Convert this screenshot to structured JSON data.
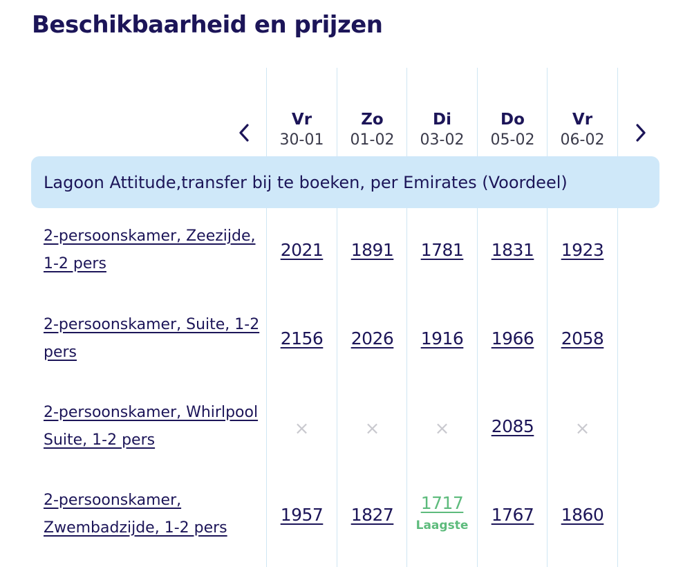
{
  "title": "Beschikbaarheid en prijzen",
  "nav": {
    "prev_icon": "chevron-left-icon",
    "next_icon": "chevron-right-icon"
  },
  "days": [
    {
      "day": "Vr",
      "date": "30-01"
    },
    {
      "day": "Zo",
      "date": "01-02"
    },
    {
      "day": "Di",
      "date": "03-02"
    },
    {
      "day": "Do",
      "date": "05-02"
    },
    {
      "day": "Vr",
      "date": "06-02"
    }
  ],
  "package": "Lagoon Attitude,transfer bij te boeken, per Emirates (Voordeel)",
  "unavailable_symbol": "×",
  "lowest_label": "Laagste",
  "rooms": [
    {
      "name": "2-persoonskamer, Zeezijde, 1-2 pers",
      "prices": [
        "2021",
        "1891",
        "1781",
        "1831",
        "1923"
      ]
    },
    {
      "name": "2-persoonskamer, Suite, 1-2 pers",
      "prices": [
        "2156",
        "2026",
        "1916",
        "1966",
        "2058"
      ]
    },
    {
      "name": "2-persoonskamer, Whirlpool Suite, 1-2 pers",
      "prices": [
        null,
        null,
        null,
        "2085",
        null
      ]
    },
    {
      "name": "2-persoonskamer, Zwembadzijde, 1-2 pers",
      "prices": [
        "1957",
        "1827",
        "1717",
        "1767",
        "1860"
      ],
      "lowest_index": 2
    }
  ],
  "colors": {
    "primary": "#1c1558",
    "banner": "#cfe8f9",
    "lowest": "#5dbb7c",
    "unavailable": "#c9c9cf",
    "gridline": "#cfe6f3"
  }
}
